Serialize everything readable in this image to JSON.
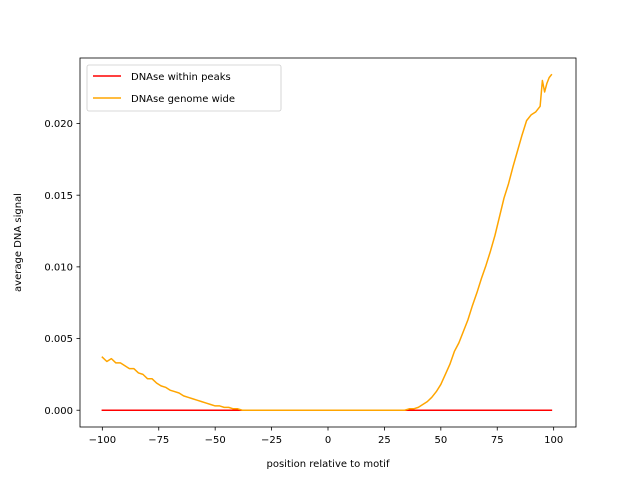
{
  "chart_data": {
    "type": "line",
    "title": "",
    "xlabel": "position relative to motif",
    "ylabel": "average DNA signal",
    "xlim": [
      -109.9,
      109.9
    ],
    "ylim": [
      -0.00117,
      0.02457
    ],
    "xticks": [
      -100,
      -75,
      -50,
      -25,
      0,
      25,
      50,
      75,
      100
    ],
    "xtick_labels": [
      "−100",
      "−75",
      "−50",
      "−25",
      "0",
      "25",
      "50",
      "75",
      "100"
    ],
    "yticks": [
      0.0,
      0.005,
      0.01,
      0.015,
      0.02
    ],
    "ytick_labels": [
      "0.000",
      "0.005",
      "0.010",
      "0.015",
      "0.020"
    ],
    "grid": false,
    "legend_position": "top-left",
    "series": [
      {
        "name": "DNAse within peaks",
        "color": "#ff0000",
        "x": [
          -100,
          99
        ],
        "y": [
          0.0,
          0.0
        ]
      },
      {
        "name": "DNAse genome wide",
        "color": "#ffa500",
        "x": [
          -100,
          -98,
          -96,
          -94,
          -92,
          -90,
          -88,
          -86,
          -84,
          -82,
          -80,
          -78,
          -76,
          -74,
          -72,
          -70,
          -68,
          -66,
          -64,
          -62,
          -60,
          -58,
          -56,
          -54,
          -52,
          -50,
          -48,
          -46,
          -44,
          -42,
          -40,
          -38,
          -36,
          -34,
          -30,
          -20,
          -10,
          0,
          10,
          20,
          30,
          34,
          36,
          38,
          40,
          42,
          44,
          46,
          48,
          50,
          52,
          54,
          56,
          58,
          60,
          62,
          64,
          66,
          68,
          70,
          72,
          74,
          76,
          78,
          80,
          82,
          84,
          86,
          88,
          90,
          92,
          94,
          95,
          96,
          97,
          98,
          99
        ],
        "y": [
          0.0037,
          0.0034,
          0.0036,
          0.0033,
          0.0033,
          0.0031,
          0.0029,
          0.0029,
          0.0026,
          0.0025,
          0.0022,
          0.0022,
          0.0019,
          0.0017,
          0.0016,
          0.0014,
          0.0013,
          0.0012,
          0.001,
          0.0009,
          0.0008,
          0.0007,
          0.0006,
          0.0005,
          0.0004,
          0.0003,
          0.0003,
          0.0002,
          0.0002,
          0.0001,
          0.0001,
          0.0,
          0.0,
          0.0,
          0.0,
          0.0,
          0.0,
          0.0,
          0.0,
          0.0,
          0.0,
          0.0,
          0.0001,
          0.0001,
          0.0002,
          0.0004,
          0.0006,
          0.0009,
          0.0013,
          0.0018,
          0.0025,
          0.0032,
          0.0041,
          0.0047,
          0.0055,
          0.0063,
          0.0073,
          0.0082,
          0.0092,
          0.0101,
          0.0111,
          0.0122,
          0.0135,
          0.0148,
          0.0158,
          0.017,
          0.0181,
          0.0192,
          0.0202,
          0.0206,
          0.0208,
          0.0212,
          0.023,
          0.0222,
          0.0228,
          0.0232,
          0.0234
        ]
      }
    ]
  }
}
